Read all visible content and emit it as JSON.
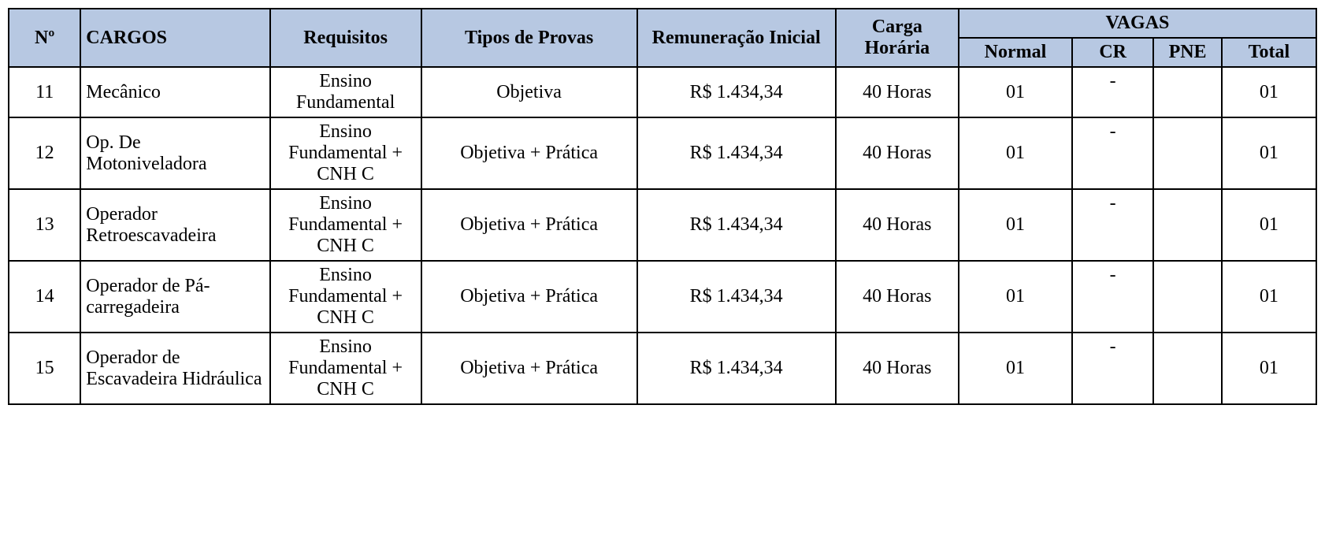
{
  "table": {
    "header_bg": "#b7c8e2",
    "border_color": "#000000",
    "font_family": "Times New Roman",
    "font_size_pt": 18,
    "columns": {
      "num": "Nº",
      "cargos": "CARGOS",
      "req": "Requisitos",
      "provas": "Tipos de Provas",
      "rem": "Remuneração Inicial",
      "carga": "Carga Horária",
      "vagas_group": "VAGAS",
      "normal": "Normal",
      "cr": "CR",
      "pne": "PNE",
      "total": "Total"
    },
    "rows": [
      {
        "num": "11",
        "cargo": "Mecânico",
        "req": "Ensino Fundamental",
        "provas": "Objetiva",
        "rem": "R$ 1.434,34",
        "carga": "40 Horas",
        "normal": "01",
        "cr": "-",
        "pne": "",
        "total": "01"
      },
      {
        "num": "12",
        "cargo": "Op. De Motoniveladora",
        "req": "Ensino Fundamental + CNH C",
        "provas": "Objetiva + Prática",
        "rem": "R$ 1.434,34",
        "carga": "40 Horas",
        "normal": "01",
        "cr": "-",
        "pne": "",
        "total": "01"
      },
      {
        "num": "13",
        "cargo": "Operador Retroescavadeira",
        "req": "Ensino Fundamental + CNH C",
        "provas": "Objetiva + Prática",
        "rem": "R$ 1.434,34",
        "carga": "40 Horas",
        "normal": "01",
        "cr": "-",
        "pne": "",
        "total": "01"
      },
      {
        "num": "14",
        "cargo": "Operador de Pá-carregadeira",
        "req": "Ensino Fundamental + CNH C",
        "provas": "Objetiva + Prática",
        "rem": "R$ 1.434,34",
        "carga": "40 Horas",
        "normal": "01",
        "cr": "-",
        "pne": "",
        "total": "01"
      },
      {
        "num": "15",
        "cargo": "Operador de Escavadeira Hidráulica",
        "req": "Ensino Fundamental + CNH C",
        "provas": "Objetiva + Prática",
        "rem": "R$ 1.434,34",
        "carga": "40 Horas",
        "normal": "01",
        "cr": "-",
        "pne": "",
        "total": "01"
      }
    ]
  }
}
